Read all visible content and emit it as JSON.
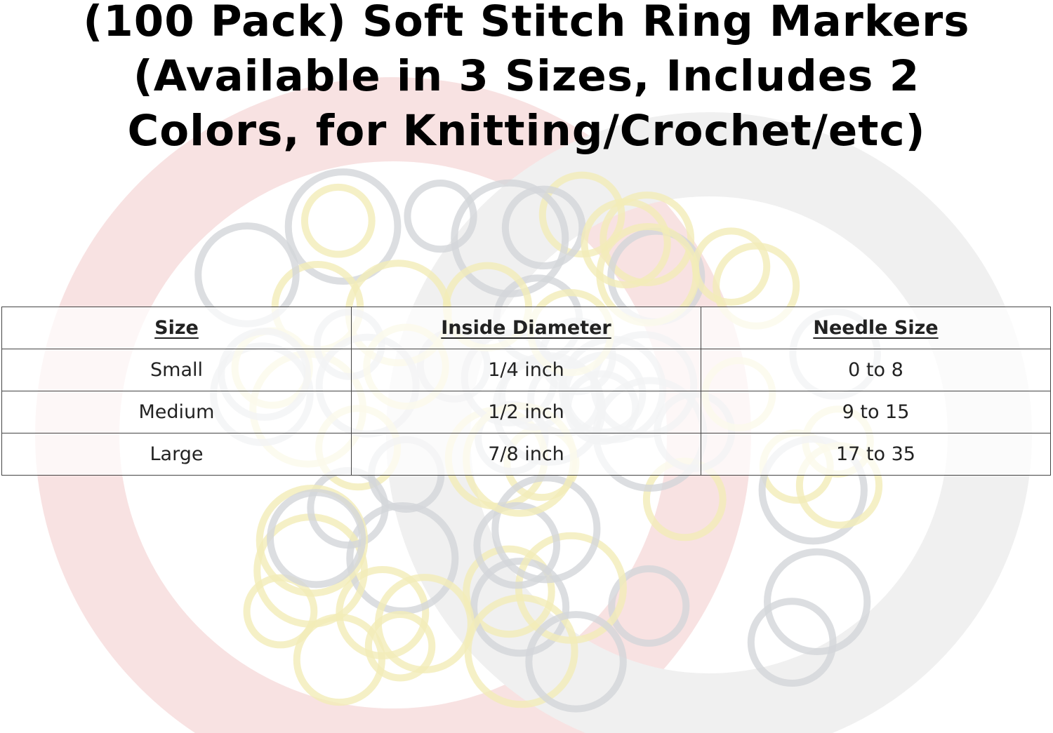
{
  "title": {
    "lines": [
      "(100 Pack) Soft Stitch Ring Markers",
      "(Available in 3 Sizes, Includes 2",
      "Colors, for Knitting/Crochet/etc)"
    ]
  },
  "table": {
    "headers": [
      "Size",
      "Inside Diameter",
      "Needle Size"
    ],
    "rows": [
      [
        "Small",
        "1/4 inch",
        "0 to 8"
      ],
      [
        "Medium",
        "1/2 inch",
        "9 to 15"
      ],
      [
        "Large",
        "7/8 inch",
        "17 to 35"
      ]
    ]
  },
  "colors": {
    "watermark_red": "#f6dcdc",
    "watermark_gray": "#eeeeee",
    "ring_yellow": "#f2ecb8",
    "ring_dark": "#d3d6da"
  }
}
